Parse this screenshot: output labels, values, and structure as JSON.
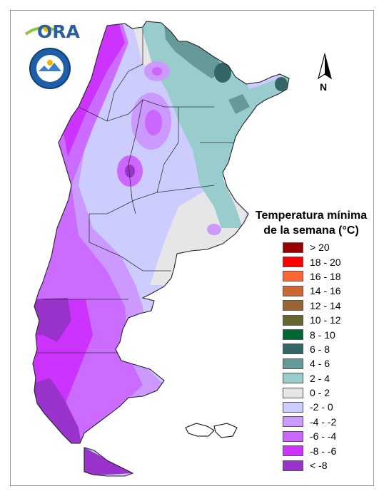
{
  "map": {
    "title_line1": "Temperatura mínima",
    "title_line2": "de la semana (°C)",
    "north_label": "N",
    "logo_text": "ORA",
    "legend": [
      {
        "label": "> 20",
        "color": "#990000"
      },
      {
        "label": "18 - 20",
        "color": "#ff0000"
      },
      {
        "label": "16 - 18",
        "color": "#ff6633"
      },
      {
        "label": "14 - 16",
        "color": "#cc6633"
      },
      {
        "label": "12 - 14",
        "color": "#996633"
      },
      {
        "label": "10 - 12",
        "color": "#666633"
      },
      {
        "label": "8 - 10",
        "color": "#006633"
      },
      {
        "label": "6 - 8",
        "color": "#336666"
      },
      {
        "label": "4 - 6",
        "color": "#669999"
      },
      {
        "label": "2 - 4",
        "color": "#99cccc"
      },
      {
        "label": "0 - 2",
        "color": "#e6e6e6"
      },
      {
        "label": "-2 - 0",
        "color": "#ccccff"
      },
      {
        "label": "-4 - -2",
        "color": "#cc99ff"
      },
      {
        "label": "-6 - -4",
        "color": "#cc66ff"
      },
      {
        "label": "-8 - -6",
        "color": "#cc33ff"
      },
      {
        "label": "< -8",
        "color": "#9933cc"
      }
    ]
  }
}
